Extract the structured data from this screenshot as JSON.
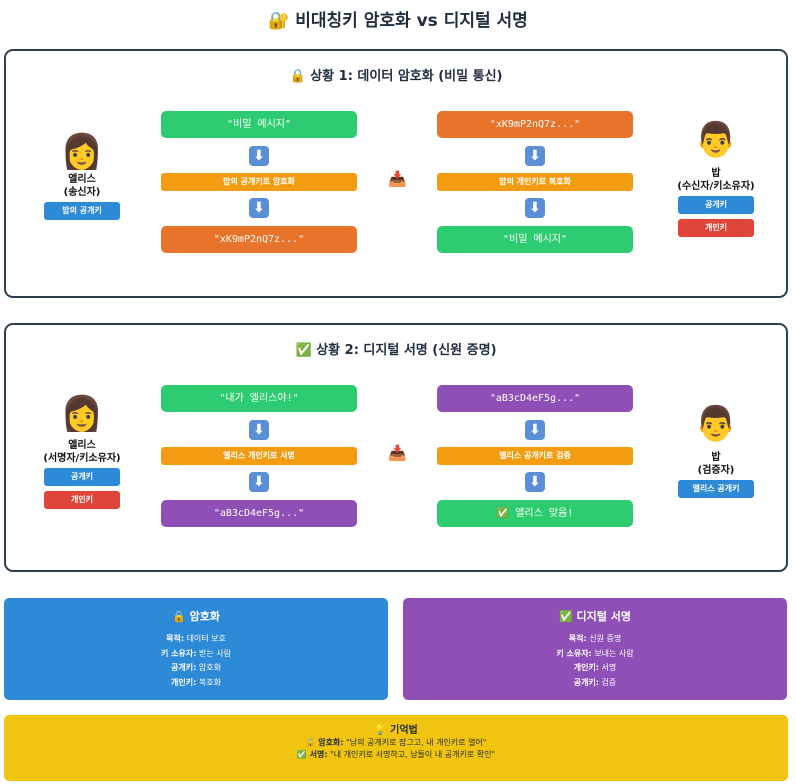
{
  "title": "🔐 비대칭키 암호화 vs 디지털 서명",
  "scenario1": {
    "title": "🔒 상황 1: 데이터 암호화 (비밀 통신)",
    "left_person": {
      "avatar": "👩",
      "name": "앨리스",
      "role": "(송신자)",
      "keys": [
        "밥의 공개키"
      ]
    },
    "right_person": {
      "avatar": "👨",
      "name": "밥",
      "role": "(수신자/키소유자)",
      "keys": [
        "공개키",
        "개인키"
      ]
    },
    "left_flow": {
      "top_msg": "\"비밀 메시지\"",
      "step": "밥의 공개키로 암호화",
      "bottom_msg": "\"xK9mP2nQ7z...\""
    },
    "right_flow": {
      "top_msg": "\"xK9mP2nQ7z...\"",
      "step": "밥의 개인키로 복호화",
      "bottom_msg": "\"비밀 메시지\""
    },
    "arrow_icon": "⬇",
    "transfer_icon": "📥"
  },
  "scenario2": {
    "title": "✅ 상황 2: 디지털 서명 (신원 증명)",
    "left_person": {
      "avatar": "👩",
      "name": "앨리스",
      "role": "(서명자/키소유자)",
      "keys": [
        "공개키",
        "개인키"
      ]
    },
    "right_person": {
      "avatar": "👨",
      "name": "밥",
      "role": "(검증자)",
      "keys": [
        "앨리스 공개키"
      ]
    },
    "left_flow": {
      "top_msg": "\"내가 앨리스야!\"",
      "step": "앨리스 개인키로 서명",
      "bottom_msg": "\"aB3cD4eF5g...\""
    },
    "right_flow": {
      "top_msg": "\"aB3cD4eF5g...\"",
      "step": "앨리스 공개키로 검증",
      "bottom_msg": "✅ 앨리스 맞음!"
    },
    "arrow_icon": "⬇",
    "transfer_icon": "📥"
  },
  "summary_encrypt": {
    "title": "🔒 암호화",
    "lines": [
      {
        "label": "목적:",
        "value": "데이터 보호"
      },
      {
        "label": "키 소유자:",
        "value": "받는 사람"
      },
      {
        "label": "공개키:",
        "value": "암호화"
      },
      {
        "label": "개인키:",
        "value": "복호화"
      }
    ]
  },
  "summary_sign": {
    "title": "✅ 디지털 서명",
    "lines": [
      {
        "label": "목적:",
        "value": "신원 증명"
      },
      {
        "label": "키 소유자:",
        "value": "보내는 사람"
      },
      {
        "label": "개인키:",
        "value": "서명"
      },
      {
        "label": "공개키:",
        "value": "검증"
      }
    ]
  },
  "memo": {
    "title": "💡 기억법",
    "line1_label": "🔒 암호화:",
    "line1_text": "\"남의 공개키로 잠그고, 내 개인키로 열어\"",
    "line2_label": "✅ 서명:",
    "line2_text": "\"내 개인키로 서명하고, 남들이 내 공개키로 확인\""
  },
  "colors": {
    "green": "#2ecc71",
    "orange": "#e8732a",
    "step_orange": "#f39c12",
    "purple": "#8e4fb6",
    "blue": "#2d8ad6",
    "red": "#e0453a",
    "memo_yellow": "#f1c40f"
  }
}
